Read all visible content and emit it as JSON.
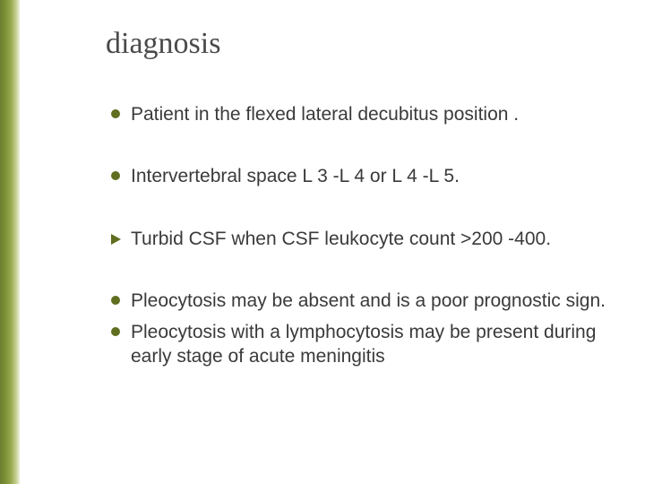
{
  "colors": {
    "title": "#4a4a4a",
    "body_text": "#3a3a3a",
    "bullet_disc": "#5f6f1f",
    "bullet_triangle": "#5f6f1f",
    "background": "#ffffff"
  },
  "typography": {
    "title_font": "Times New Roman",
    "title_size_pt": 26,
    "body_font": "Arial",
    "body_size_pt": 16
  },
  "title": "diagnosis",
  "items": [
    {
      "marker": "disc",
      "text": "Patient in the flexed lateral decubitus position .",
      "spacing": "normal"
    },
    {
      "marker": "disc",
      "text": "Intervertebral space L 3 -L 4 or L 4 -L 5.",
      "spacing": "normal"
    },
    {
      "marker": "triangle",
      "text": "Turbid CSF when CSF leukocyte count >200 -400.",
      "spacing": "normal"
    },
    {
      "marker": "disc",
      "text": "Pleocytosis  may be absent  and is a poor prognostic sign.",
      "spacing": "tight"
    },
    {
      "marker": "disc",
      "text": "Pleocytosis with a lymphocytosis may be present during early stage of acute  meningitis",
      "spacing": "last"
    }
  ]
}
